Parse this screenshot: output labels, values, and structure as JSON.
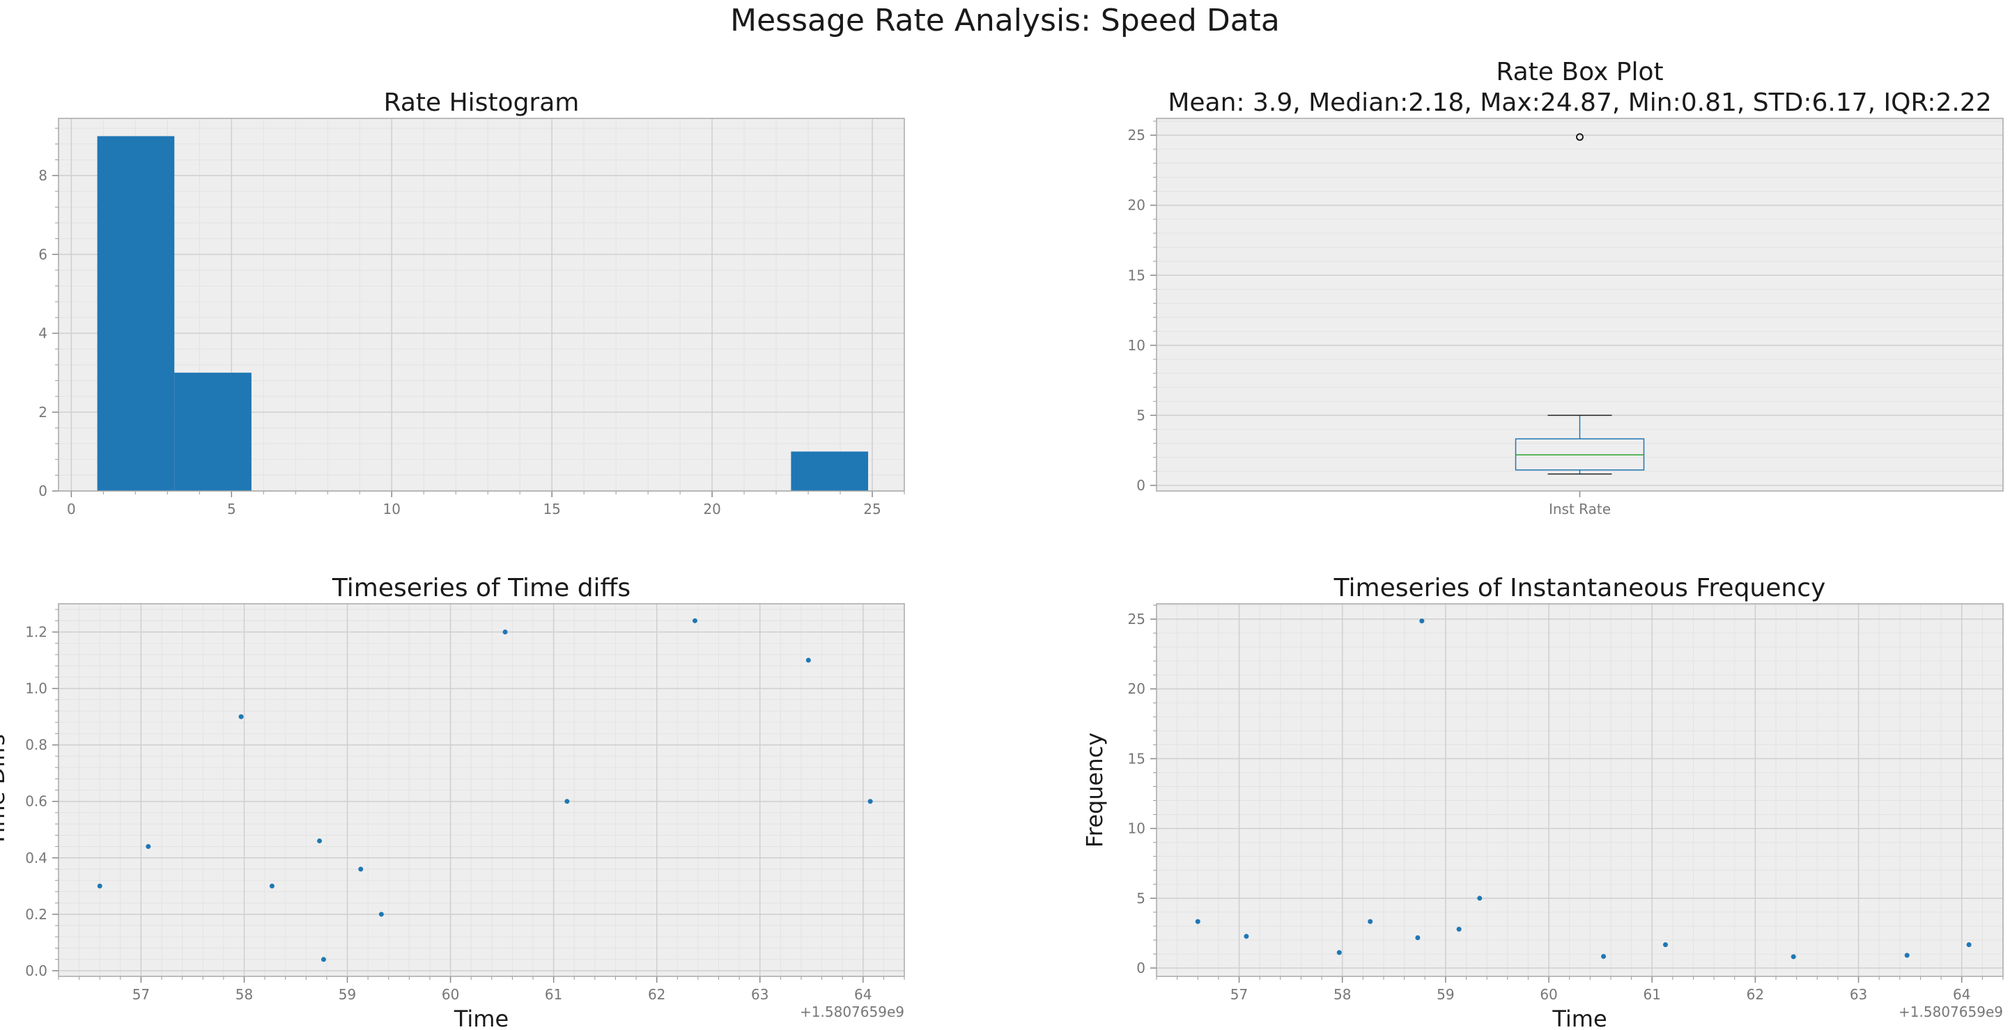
{
  "figure": {
    "suptitle": "Message Rate Analysis: Speed Data"
  },
  "colors": {
    "accent": "#1f77b4",
    "median": "#2ca02c",
    "panel_bg": "#eeeeee",
    "grid_major": "#cfcfcf",
    "grid_minor": "#e3e3e3",
    "tick_text": "#777777",
    "text": "#1a1a1a"
  },
  "chart_data": [
    {
      "id": "histogram",
      "type": "bar",
      "title": "Rate Histogram",
      "xlabel": "",
      "ylabel": "",
      "xlim": [
        -0.4,
        26.0
      ],
      "ylim": [
        0,
        9.45
      ],
      "xticks": [
        0,
        5,
        10,
        15,
        20,
        25
      ],
      "yticks": [
        0,
        2,
        4,
        6,
        8
      ],
      "grid": true,
      "bins": [
        {
          "x0": 0.81,
          "x1": 3.216,
          "count": 9
        },
        {
          "x0": 3.216,
          "x1": 5.622,
          "count": 3
        },
        {
          "x0": 5.622,
          "x1": 8.028,
          "count": 0
        },
        {
          "x0": 8.028,
          "x1": 10.434,
          "count": 0
        },
        {
          "x0": 10.434,
          "x1": 12.84,
          "count": 0
        },
        {
          "x0": 12.84,
          "x1": 15.246,
          "count": 0
        },
        {
          "x0": 15.246,
          "x1": 17.652,
          "count": 0
        },
        {
          "x0": 17.652,
          "x1": 20.058,
          "count": 0
        },
        {
          "x0": 20.058,
          "x1": 22.464,
          "count": 0
        },
        {
          "x0": 22.464,
          "x1": 24.87,
          "count": 1
        }
      ]
    },
    {
      "id": "boxplot",
      "type": "box",
      "title": "Rate Box Plot",
      "subtitle": "Mean: 3.9, Median:2.18, Max:24.87, Min:0.81, STD:6.17, IQR:2.22",
      "categories": [
        "Inst Rate"
      ],
      "ylim": [
        -0.4,
        26.2
      ],
      "yticks": [
        0,
        5,
        10,
        15,
        20,
        25
      ],
      "grid": true,
      "box": {
        "whisker_low": 0.81,
        "q1": 1.1,
        "median": 2.18,
        "q3": 3.32,
        "whisker_high": 5.0,
        "outliers": [
          24.87
        ]
      }
    },
    {
      "id": "timediffs",
      "type": "scatter",
      "title": "Timeseries of Time diffs",
      "xlabel": "Time",
      "ylabel": "Time Diffs",
      "offset_label": "+1.5807659e9",
      "xlim": [
        56.2,
        64.4
      ],
      "ylim": [
        -0.02,
        1.3
      ],
      "xticks": [
        57,
        58,
        59,
        60,
        61,
        62,
        63,
        64
      ],
      "yticks": [
        0.0,
        0.2,
        0.4,
        0.6,
        0.8,
        1.0,
        1.2
      ],
      "ytick_labels": [
        "0.0",
        "0.2",
        "0.4",
        "0.6",
        "0.8",
        "1.0",
        "1.2"
      ],
      "grid": true,
      "x": [
        56.6,
        57.07,
        57.97,
        58.27,
        58.73,
        58.77,
        59.13,
        59.33,
        60.53,
        61.13,
        62.37,
        63.47,
        64.07
      ],
      "y": [
        0.3,
        0.44,
        0.9,
        0.3,
        0.46,
        0.04,
        0.36,
        0.2,
        1.2,
        0.6,
        1.24,
        1.1,
        0.6
      ]
    },
    {
      "id": "instfreq",
      "type": "scatter",
      "title": "Timeseries of Instantaneous Frequency",
      "xlabel": "Time",
      "ylabel": "Frequency",
      "offset_label": "+1.5807659e9",
      "xlim": [
        56.2,
        64.4
      ],
      "ylim": [
        -0.6,
        26.1
      ],
      "xticks": [
        57,
        58,
        59,
        60,
        61,
        62,
        63,
        64
      ],
      "yticks": [
        0,
        5,
        10,
        15,
        20,
        25
      ],
      "grid": true,
      "x": [
        56.6,
        57.07,
        57.97,
        58.27,
        58.73,
        58.77,
        59.13,
        59.33,
        60.53,
        61.13,
        62.37,
        63.47,
        64.07
      ],
      "y": [
        3.33,
        2.27,
        1.11,
        3.33,
        2.17,
        24.87,
        2.78,
        5.0,
        0.83,
        1.67,
        0.81,
        0.91,
        1.67
      ]
    }
  ]
}
